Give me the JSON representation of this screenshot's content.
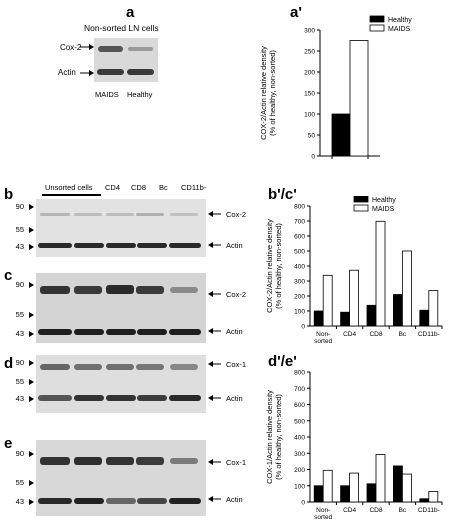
{
  "panels": {
    "a": "a",
    "a_prime": "a'",
    "b": "b",
    "c": "c",
    "d": "d",
    "e": "e",
    "bc_prime": "b'/c'",
    "de_prime": "d'/e'"
  },
  "blot_a": {
    "title": "Non-sorted LN cells",
    "row_labels": [
      "Cox-2",
      "Actin"
    ],
    "lanes": [
      "MAIDS",
      "Healthy"
    ]
  },
  "lanes_top": [
    "Unsorted cells",
    "CD4",
    "CD8",
    "Bc",
    "CD11b-"
  ],
  "blots": [
    {
      "id": "b",
      "markers": [
        "90",
        "55",
        "43"
      ],
      "rows": [
        "Cox-2",
        "Actin"
      ]
    },
    {
      "id": "c",
      "markers": [
        "90",
        "55",
        "43"
      ],
      "rows": [
        "Cox-2",
        "Actin"
      ]
    },
    {
      "id": "d",
      "markers": [
        "90",
        "55",
        "43"
      ],
      "rows": [
        "Cox-1",
        "Actin"
      ]
    },
    {
      "id": "e",
      "markers": [
        "90",
        "55",
        "43"
      ],
      "rows": [
        "Cox-1",
        "Actin"
      ]
    }
  ],
  "colors": {
    "healthy": "#000000",
    "maids": "#ffffff"
  },
  "chart_data": [
    {
      "type": "bar",
      "panel": "a'",
      "categories": [
        ""
      ],
      "series": [
        {
          "name": "Healthy",
          "values": [
            100
          ]
        },
        {
          "name": "MAIDS",
          "values": [
            275
          ]
        }
      ],
      "ylabel": "COX-2/Actin relative density\n(% of healthy, non-sorted)",
      "yticks": [
        "0",
        "50",
        "100",
        "150",
        "200",
        "250",
        "300"
      ],
      "ylim": [
        0,
        300
      ],
      "legend": "top-right"
    },
    {
      "type": "bar",
      "panel": "b'/c'",
      "categories": [
        "Non-sorted",
        "CD4",
        "CD8",
        "Bc",
        "CD11b-"
      ],
      "series": [
        {
          "name": "Healthy",
          "values": [
            100,
            92,
            138,
            210,
            105
          ]
        },
        {
          "name": "MAIDS",
          "values": [
            338,
            372,
            698,
            500,
            236
          ]
        }
      ],
      "ylabel": "COX-2/Actin relative density\n(% of healthy, non-sorted)",
      "yticks": [
        "0",
        "100",
        "200",
        "300",
        "400",
        "500",
        "600",
        "700",
        "800"
      ],
      "ylim": [
        0,
        800
      ],
      "legend": "top-center"
    },
    {
      "type": "bar",
      "panel": "d'/e'",
      "categories": [
        "Non-sorted",
        "CD4",
        "CD8",
        "Bc",
        "CD11b-"
      ],
      "series": [
        {
          "name": "Healthy",
          "values": [
            100,
            100,
            112,
            222,
            20
          ]
        },
        {
          "name": "MAIDS",
          "values": [
            195,
            178,
            292,
            172,
            65
          ]
        }
      ],
      "ylabel": "COX-1/Actin relative density\n(% of healthy, non-sorted)",
      "yticks": [
        "0",
        "100",
        "200",
        "300",
        "400",
        "500",
        "600",
        "700",
        "800"
      ],
      "ylim": [
        0,
        800
      ]
    }
  ]
}
